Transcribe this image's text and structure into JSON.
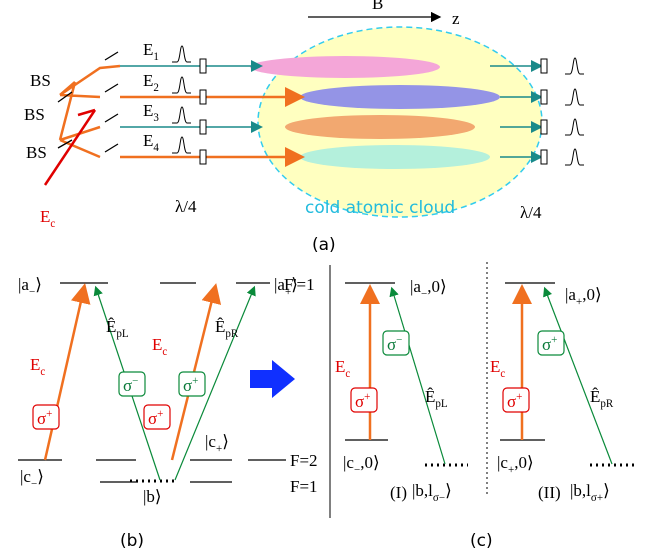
{
  "a": {
    "field": "B",
    "axis": "z",
    "beams": [
      [
        {
          "t": "E"
        },
        {
          "s": "1"
        }
      ],
      [
        {
          "t": "E"
        },
        {
          "s": "2"
        }
      ],
      [
        {
          "t": "E"
        },
        {
          "s": "3"
        }
      ],
      [
        {
          "t": "E"
        },
        {
          "s": "4"
        }
      ]
    ],
    "splitters": [
      "BS",
      "BS",
      "BS"
    ],
    "control": [
      {
        "t": "E"
      },
      {
        "s": "c"
      }
    ],
    "plate_in": "λ/4",
    "plate_out": "λ/4",
    "cloud": "cold atomic cloud",
    "label": "(a)"
  },
  "b": {
    "ket_am": [
      {
        "t": "|a"
      },
      {
        "s": "−"
      },
      {
        "t": "⟩"
      }
    ],
    "ket_ap": [
      {
        "t": "|a"
      },
      {
        "s": "+"
      },
      {
        "t": "⟩"
      }
    ],
    "f_excited": "F'=1",
    "control_left": [
      {
        "t": "E"
      },
      {
        "s": "c"
      }
    ],
    "control_right": [
      {
        "t": "E"
      },
      {
        "s": "c"
      }
    ],
    "probe_left": [
      {
        "t": "Ê"
      },
      {
        "s": "pL"
      }
    ],
    "probe_right": [
      {
        "t": "Ê"
      },
      {
        "s": "pR"
      }
    ],
    "sigma": [
      [
        {
          "t": "σ"
        },
        {
          "p": "+"
        }
      ],
      [
        {
          "t": "σ"
        },
        {
          "p": "−"
        }
      ],
      [
        {
          "t": "σ"
        },
        {
          "p": "+"
        }
      ],
      [
        {
          "t": "σ"
        },
        {
          "p": "+"
        }
      ]
    ],
    "ket_cp": [
      {
        "t": "|c"
      },
      {
        "s": "+"
      },
      {
        "t": "⟩"
      }
    ],
    "ket_cm": [
      {
        "t": "|c"
      },
      {
        "s": "−"
      },
      {
        "t": "⟩"
      }
    ],
    "ket_b": [
      {
        "t": "|b⟩"
      }
    ],
    "f2": "F=2",
    "f1": "F=1",
    "label": "(b)"
  },
  "c": {
    "ket_am0": [
      {
        "t": "|a"
      },
      {
        "s": "−"
      },
      {
        "t": ",0⟩"
      }
    ],
    "ket_ap0": [
      {
        "t": "|a"
      },
      {
        "s": "+"
      },
      {
        "t": ",0⟩"
      }
    ],
    "control_left": [
      {
        "t": "E"
      },
      {
        "s": "c"
      }
    ],
    "control_right": [
      {
        "t": "E"
      },
      {
        "s": "c"
      }
    ],
    "sigma": [
      [
        {
          "t": "σ"
        },
        {
          "p": "−"
        }
      ],
      [
        {
          "t": "σ"
        },
        {
          "p": "+"
        }
      ],
      [
        {
          "t": "σ"
        },
        {
          "p": "+"
        }
      ],
      [
        {
          "t": "σ"
        },
        {
          "p": "+"
        }
      ]
    ],
    "probe_left": [
      {
        "t": "Ê"
      },
      {
        "s": "pL"
      }
    ],
    "probe_right": [
      {
        "t": "Ê"
      },
      {
        "s": "pR"
      }
    ],
    "ket_cm0": [
      {
        "t": "|c"
      },
      {
        "s": "−"
      },
      {
        "t": ",0⟩"
      }
    ],
    "ket_cp0": [
      {
        "t": "|c"
      },
      {
        "s": "+"
      },
      {
        "t": ",0⟩"
      }
    ],
    "case_1": "(I)",
    "case_2": "(II)",
    "ket_bm": [
      {
        "t": "|b,l"
      },
      {
        "s": "σ−"
      },
      {
        "t": "⟩"
      }
    ],
    "ket_bp": [
      {
        "t": "|b,l"
      },
      {
        "s": "σ+"
      },
      {
        "t": "⟩"
      }
    ],
    "label": "(c)"
  }
}
